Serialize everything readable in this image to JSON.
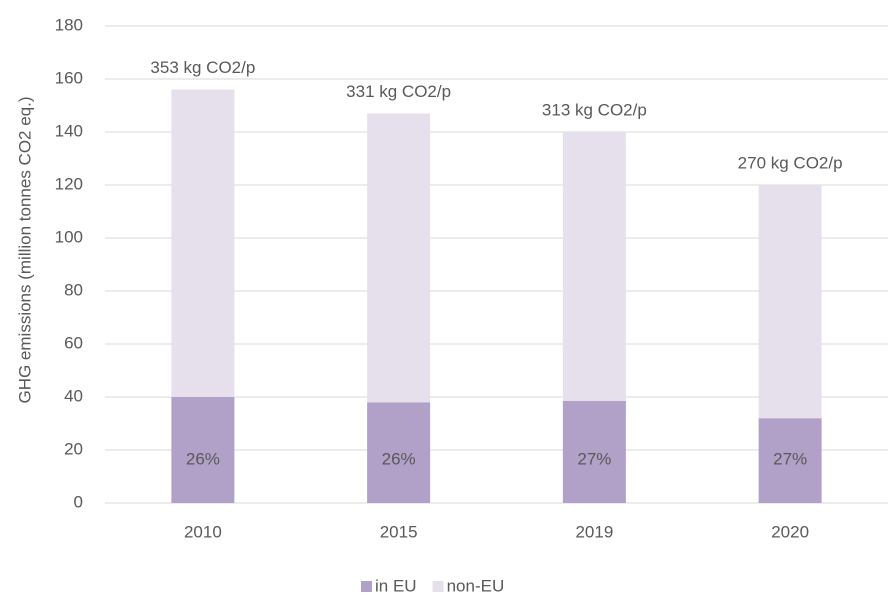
{
  "chart_data": {
    "type": "stacked_bar",
    "y_axis_label": "GHG emissions (million tonnes CO2 eq.)",
    "categories": [
      "2010",
      "2015",
      "2019",
      "2020"
    ],
    "series": [
      {
        "name": "in EU",
        "color": "#b1a0c7",
        "values": [
          40,
          38,
          38.5,
          32
        ]
      },
      {
        "name": "non-EU",
        "color": "#e6e0ec",
        "values": [
          116,
          109,
          101.5,
          88
        ]
      }
    ],
    "top_labels": [
      "353 kg CO2/p",
      "331 kg CO2/p",
      "313 kg CO2/p",
      "270 kg CO2/p"
    ],
    "share_labels": [
      "26%",
      "26%",
      "27%",
      "27%"
    ],
    "ylim": [
      0,
      180
    ],
    "yticks": [
      0,
      20,
      40,
      60,
      80,
      100,
      120,
      140,
      160,
      180
    ],
    "grid": true,
    "legend": "bottom"
  }
}
